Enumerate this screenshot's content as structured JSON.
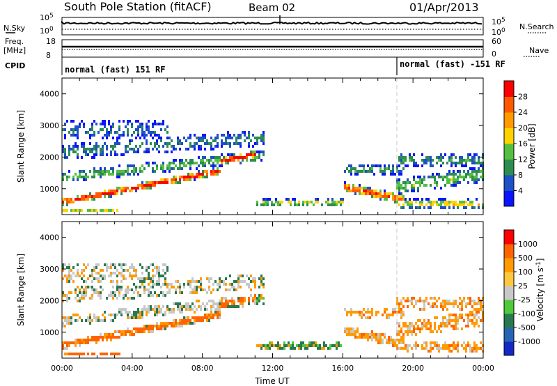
{
  "header": {
    "station": "South Pole Station (fitACF)",
    "beam": "Beam 02",
    "date": "01/Apr/2013"
  },
  "left_labels": {
    "nsky": "N.Sky",
    "freq_line1": "Freq.",
    "freq_line2": "[MHz]",
    "cpid": "CPID"
  },
  "right_labels": {
    "nsearch": "N.Search",
    "nave": "Nave"
  },
  "panel_ticks": {
    "noise_left": [
      "10^5",
      "10^0"
    ],
    "noise_right": [
      "10^5",
      "10^0"
    ],
    "freq_left": [
      "18",
      "8"
    ],
    "freq_right": [
      "60",
      "0"
    ]
  },
  "cpid": {
    "segments": [
      {
        "label": "normal (fast) 151 RF",
        "start_hour": 0
      },
      {
        "label": "normal (fast) -151 RF",
        "start_hour": 19
      }
    ]
  },
  "chart_data": [
    {
      "type": "heatmap",
      "name": "power",
      "xlabel": "",
      "ylabel": "Slant Range [km]",
      "xlim_hours": [
        0,
        24
      ],
      "ylim": [
        180,
        4500
      ],
      "yticks": [
        1000,
        2000,
        3000,
        4000
      ],
      "colorbar": {
        "label": "Power [dB]",
        "range": [
          0,
          32
        ],
        "ticks": [
          "28",
          "24",
          "20",
          "16",
          "12",
          "8",
          "4"
        ],
        "colors": [
          "#0a14ff",
          "#1e50c8",
          "#2d8c50",
          "#55c040",
          "#ffd200",
          "#ff9b00",
          "#ff5a00",
          "#ff0000"
        ]
      }
    },
    {
      "type": "heatmap",
      "name": "velocity",
      "xlabel": "Time UT",
      "ylabel": "Slant Range [km]",
      "xlim_hours": [
        0,
        24
      ],
      "ylim": [
        180,
        4500
      ],
      "yticks": [
        1000,
        2000,
        3000,
        4000
      ],
      "xticks": [
        "00:00",
        "04:00",
        "08:00",
        "12:00",
        "16:00",
        "20:00",
        "00:00"
      ],
      "colorbar": {
        "label": "Velocity [m s^-1]",
        "ticks": [
          "1000",
          "500",
          "100",
          "25",
          "-25",
          "-100",
          "-500",
          "-1000"
        ],
        "colors": [
          "#1428c8",
          "#2864b4",
          "#287850",
          "#50c83c",
          "#c8c8c8",
          "#ffc83c",
          "#ff9b00",
          "#ff6400",
          "#ff0000"
        ]
      }
    }
  ]
}
